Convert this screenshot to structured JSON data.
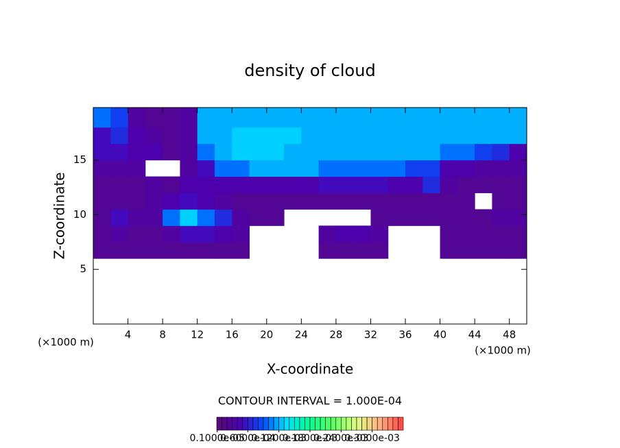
{
  "chart_data": {
    "type": "heatmap",
    "title": "density of cloud",
    "x_label": "X-coordinate",
    "y_label": "Z-coordinate",
    "x_unit": "(×1000 m)",
    "y_unit": "(×1000 m)",
    "annotation": "CONTOUR INTERVAL = 1.000E-04",
    "xlim": [
      0,
      50
    ],
    "ylim": [
      0,
      19.8
    ],
    "xticks": [
      4,
      8,
      12,
      16,
      20,
      24,
      28,
      32,
      36,
      40,
      44,
      48
    ],
    "yticks": [
      5,
      10,
      15
    ],
    "x_edges": [
      0,
      2,
      4,
      6,
      8,
      10,
      12,
      14,
      16,
      18,
      20,
      22,
      24,
      26,
      28,
      30,
      32,
      34,
      36,
      38,
      40,
      42,
      44,
      46,
      48,
      50
    ],
    "z_edges": [
      6,
      7.5,
      9,
      10.5,
      12,
      13.5,
      15,
      16.5,
      18,
      19.8
    ],
    "field": [
      [
        2e-05,
        2e-05,
        2e-05,
        2e-05,
        2e-05,
        2e-05,
        2e-05,
        2e-05,
        2e-05,
        null,
        null,
        null,
        null,
        2e-05,
        2e-05,
        2e-05,
        2e-05,
        null,
        null,
        null,
        2e-05,
        2e-05,
        2e-05,
        2e-05,
        2e-05
      ],
      [
        2e-05,
        3e-05,
        2e-05,
        2e-05,
        3e-05,
        5e-05,
        5e-05,
        4e-05,
        3e-05,
        null,
        null,
        null,
        null,
        3e-05,
        4e-05,
        4e-05,
        3e-05,
        null,
        null,
        null,
        2e-05,
        2e-05,
        2e-05,
        2e-05,
        2e-05
      ],
      [
        2e-05,
        5e-05,
        3e-05,
        3e-05,
        0.0001,
        0.00013,
        0.0001,
        7e-05,
        3e-05,
        2e-05,
        2e-05,
        null,
        null,
        null,
        null,
        null,
        2e-05,
        2e-05,
        2e-05,
        2e-05,
        2e-05,
        2e-05,
        2e-05,
        3e-05,
        3e-05
      ],
      [
        2e-05,
        2e-05,
        2e-05,
        3e-05,
        4e-05,
        5e-05,
        4e-05,
        3e-05,
        2e-05,
        2e-05,
        2e-05,
        2e-05,
        2e-05,
        2e-05,
        2e-05,
        2e-05,
        2e-05,
        2e-05,
        2e-05,
        2e-05,
        2e-05,
        2e-05,
        null,
        2e-05,
        2e-05
      ],
      [
        2e-05,
        2e-05,
        2e-05,
        3e-05,
        2e-05,
        4e-05,
        4e-05,
        4e-05,
        4e-05,
        4e-05,
        4e-05,
        4e-05,
        4e-05,
        5e-05,
        5e-05,
        5e-05,
        5e-05,
        4e-05,
        4e-05,
        7e-05,
        3e-05,
        2e-05,
        2e-05,
        2e-05,
        2e-05
      ],
      [
        3e-05,
        3e-05,
        3e-05,
        null,
        null,
        3e-05,
        5e-05,
        0.0001,
        0.0001,
        0.00012,
        0.00012,
        0.00012,
        0.00012,
        0.0001,
        0.0001,
        0.0001,
        0.0001,
        0.0001,
        8e-05,
        8e-05,
        4e-05,
        4e-05,
        3e-05,
        3e-05,
        3e-05
      ],
      [
        5e-05,
        5e-05,
        4e-05,
        4e-05,
        2e-05,
        3e-05,
        0.0001,
        0.00012,
        0.00013,
        0.00013,
        0.00013,
        0.00012,
        0.00012,
        0.00012,
        0.00012,
        0.00012,
        0.00012,
        0.00012,
        0.00012,
        0.00012,
        0.0001,
        0.0001,
        8e-05,
        7e-05,
        4e-05
      ],
      [
        5e-05,
        7e-05,
        4e-05,
        3e-05,
        2e-05,
        3e-05,
        0.00012,
        0.00012,
        0.00013,
        0.00013,
        0.00013,
        0.00013,
        0.00012,
        0.00012,
        0.00012,
        0.00012,
        0.00012,
        0.00012,
        0.00012,
        0.00012,
        0.00012,
        0.00012,
        0.00012,
        0.00012,
        0.00012
      ],
      [
        0.0001,
        8e-05,
        3e-05,
        2e-05,
        2e-05,
        3e-05,
        0.00012,
        0.00012,
        0.00012,
        0.00012,
        0.00012,
        0.00012,
        0.00012,
        0.00012,
        0.00012,
        0.00012,
        0.00012,
        0.00012,
        0.00012,
        0.00012,
        0.00012,
        0.00012,
        0.00012,
        0.00012,
        0.00012
      ]
    ],
    "clim": [
      0,
      0.00036
    ],
    "colormap": [
      "#5a0a78",
      "#4b00b4",
      "#0050ff",
      "#00e0ff",
      "#00ff90",
      "#60ff60",
      "#e0ff80",
      "#ffb080",
      "#ff4040"
    ],
    "colorbar_ticks": [
      {
        "value": 1e-06,
        "label": "0.1000e-05"
      },
      {
        "value": 6e-05,
        "label": "0.6000e-04"
      },
      {
        "value": 0.00012,
        "label": "0.1200e-03"
      },
      {
        "value": 0.00018,
        "label": "0.1800e-03"
      },
      {
        "value": 0.00024,
        "label": "0.2400e-03"
      },
      {
        "value": 0.0003,
        "label": "0.3000e-03"
      }
    ]
  }
}
